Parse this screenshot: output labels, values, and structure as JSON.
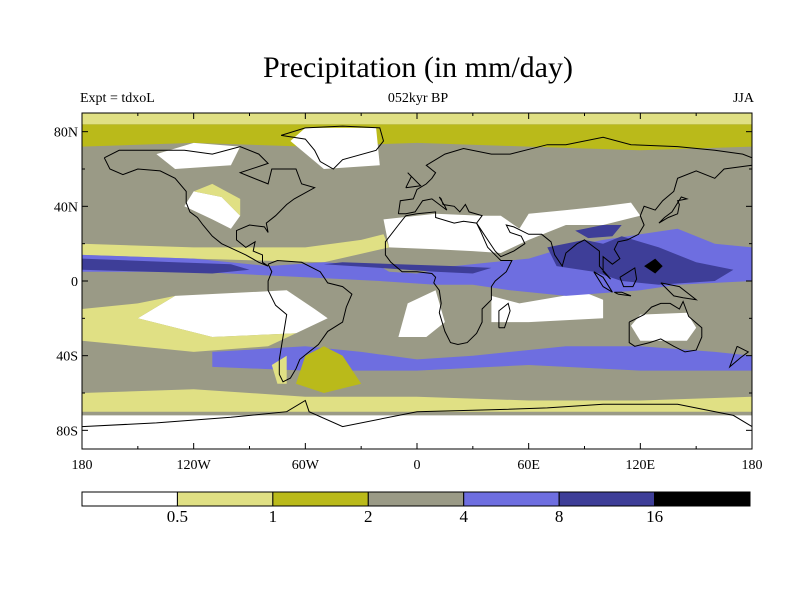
{
  "title": "Precipitation (in mm/day)",
  "subtitle_left": "Expt = tdxoL",
  "subtitle_center": "052kyr BP",
  "subtitle_right": "JJA",
  "lat_ticks": [
    "80N",
    "40N",
    "0",
    "40S",
    "80S"
  ],
  "lon_ticks": [
    "180",
    "120W",
    "60W",
    "0",
    "60E",
    "120E",
    "180"
  ],
  "colorbar": {
    "colors": [
      "#ffffff",
      "#e0e084",
      "#baba1a",
      "#9a9a86",
      "#6e6ee0",
      "#3e3e98",
      "#000000"
    ],
    "labels": [
      "0.5",
      "1",
      "2",
      "4",
      "8",
      "16"
    ]
  },
  "chart_data": {
    "type": "heatmap",
    "title": "Precipitation (in mm/day)",
    "projection": "cylindrical-equidistant",
    "lon_range": [
      -180,
      180
    ],
    "lat_range": [
      -90,
      90
    ],
    "levels": [
      0.5,
      1,
      2,
      4,
      8,
      16
    ],
    "level_colors": [
      "#ffffff",
      "#e0e084",
      "#baba1a",
      "#9a9a86",
      "#6e6ee0",
      "#3e3e98",
      "#000000"
    ],
    "season": "JJA",
    "experiment": "tdxoL",
    "time": "052kyr BP",
    "regions": [
      {
        "class": 3,
        "poly": [
          [
            -180,
            50
          ],
          [
            -150,
            48
          ],
          [
            -120,
            45
          ],
          [
            -90,
            52
          ],
          [
            -60,
            55
          ],
          [
            -30,
            62
          ],
          [
            0,
            60
          ],
          [
            30,
            63
          ],
          [
            60,
            58
          ],
          [
            90,
            55
          ],
          [
            120,
            52
          ],
          [
            150,
            58
          ],
          [
            180,
            55
          ],
          [
            180,
            72
          ],
          [
            120,
            70
          ],
          [
            60,
            72
          ],
          [
            0,
            74
          ],
          [
            -60,
            72
          ],
          [
            -120,
            74
          ],
          [
            -180,
            72
          ]
        ]
      },
      {
        "class": 2,
        "poly": [
          [
            -180,
            72
          ],
          [
            -120,
            74
          ],
          [
            -60,
            72
          ],
          [
            0,
            74
          ],
          [
            60,
            72
          ],
          [
            120,
            70
          ],
          [
            180,
            72
          ],
          [
            180,
            84
          ],
          [
            -180,
            84
          ]
        ]
      },
      {
        "class": 1,
        "poly": [
          [
            -180,
            84
          ],
          [
            180,
            84
          ],
          [
            180,
            90
          ],
          [
            -180,
            90
          ]
        ]
      },
      {
        "class": 0,
        "poly": [
          [
            -50,
            60
          ],
          [
            -20,
            62
          ],
          [
            -22,
            82
          ],
          [
            -60,
            82
          ],
          [
            -68,
            75
          ]
        ]
      },
      {
        "class": 0,
        "poly": [
          [
            -130,
            60
          ],
          [
            -100,
            62
          ],
          [
            -95,
            72
          ],
          [
            -120,
            74
          ],
          [
            -140,
            68
          ]
        ]
      },
      {
        "class": 0,
        "poly": [
          [
            -125,
            40
          ],
          [
            -110,
            33
          ],
          [
            -100,
            28
          ],
          [
            -95,
            35
          ],
          [
            -105,
            45
          ],
          [
            -120,
            48
          ]
        ]
      },
      {
        "class": 1,
        "poly": [
          [
            -120,
            48
          ],
          [
            -105,
            45
          ],
          [
            -95,
            35
          ],
          [
            -95,
            44
          ],
          [
            -110,
            52
          ]
        ]
      },
      {
        "class": 0,
        "poly": [
          [
            -18,
            33
          ],
          [
            10,
            36
          ],
          [
            35,
            35
          ],
          [
            45,
            35
          ],
          [
            55,
            28
          ],
          [
            60,
            36
          ],
          [
            80,
            38
          ],
          [
            100,
            40
          ],
          [
            115,
            42
          ],
          [
            120,
            35
          ],
          [
            100,
            30
          ],
          [
            80,
            30
          ],
          [
            60,
            22
          ],
          [
            45,
            15
          ],
          [
            30,
            16
          ],
          [
            10,
            17
          ],
          [
            -15,
            18
          ]
        ]
      },
      {
        "class": 0,
        "poly": [
          [
            40,
            -10
          ],
          [
            40,
            -8
          ],
          [
            55,
            -12
          ],
          [
            90,
            -6
          ],
          [
            100,
            -10
          ],
          [
            100,
            -20
          ],
          [
            60,
            -22
          ],
          [
            40,
            -22
          ]
        ]
      },
      {
        "class": 0,
        "poly": [
          [
            -5,
            -12
          ],
          [
            10,
            -5
          ],
          [
            15,
            -22
          ],
          [
            5,
            -30
          ],
          [
            -10,
            -30
          ]
        ]
      },
      {
        "class": 0,
        "poly": [
          [
            -130,
            -8
          ],
          [
            -70,
            -5
          ],
          [
            -55,
            -15
          ],
          [
            -48,
            -20
          ],
          [
            -65,
            -28
          ],
          [
            -110,
            -30
          ],
          [
            -150,
            -20
          ]
        ]
      },
      {
        "class": 0,
        "poly": [
          [
            120,
            -18
          ],
          [
            145,
            -17
          ],
          [
            150,
            -25
          ],
          [
            145,
            -32
          ],
          [
            120,
            -32
          ],
          [
            115,
            -24
          ]
        ]
      },
      {
        "class": 1,
        "poly": [
          [
            -180,
            -15
          ],
          [
            -150,
            -12
          ],
          [
            -130,
            -8
          ],
          [
            -150,
            -20
          ],
          [
            -110,
            -30
          ],
          [
            -65,
            -28
          ],
          [
            -80,
            -35
          ],
          [
            -120,
            -38
          ],
          [
            -180,
            -32
          ]
        ]
      },
      {
        "class": 1,
        "poly": [
          [
            -180,
            20
          ],
          [
            -120,
            18
          ],
          [
            -60,
            18
          ],
          [
            -30,
            22
          ],
          [
            -18,
            25
          ],
          [
            -15,
            18
          ],
          [
            -50,
            10
          ],
          [
            -120,
            12
          ],
          [
            -180,
            14
          ]
        ]
      },
      {
        "class": 4,
        "poly": [
          [
            -180,
            14
          ],
          [
            -120,
            12
          ],
          [
            -80,
            8
          ],
          [
            -50,
            10
          ],
          [
            -20,
            8
          ],
          [
            -15,
            5
          ],
          [
            0,
            4
          ],
          [
            20,
            8
          ],
          [
            40,
            10
          ],
          [
            60,
            12
          ],
          [
            80,
            18
          ],
          [
            100,
            22
          ],
          [
            120,
            25
          ],
          [
            140,
            28
          ],
          [
            160,
            20
          ],
          [
            180,
            18
          ],
          [
            180,
            0
          ],
          [
            140,
            -2
          ],
          [
            120,
            -5
          ],
          [
            80,
            -8
          ],
          [
            50,
            -5
          ],
          [
            30,
            -2
          ],
          [
            10,
            -2
          ],
          [
            -20,
            0
          ],
          [
            -60,
            2
          ],
          [
            -120,
            5
          ],
          [
            -180,
            5
          ]
        ]
      },
      {
        "class": 5,
        "poly": [
          [
            -180,
            12
          ],
          [
            -130,
            10
          ],
          [
            -100,
            9
          ],
          [
            -90,
            6
          ],
          [
            -110,
            4
          ],
          [
            -180,
            6
          ]
        ]
      },
      {
        "class": 5,
        "poly": [
          [
            -50,
            9
          ],
          [
            -20,
            7
          ],
          [
            10,
            5
          ],
          [
            30,
            4
          ],
          [
            40,
            7
          ],
          [
            20,
            8
          ],
          [
            -10,
            9
          ],
          [
            -40,
            10
          ]
        ]
      },
      {
        "class": 5,
        "poly": [
          [
            70,
            18
          ],
          [
            90,
            22
          ],
          [
            100,
            20
          ],
          [
            110,
            24
          ],
          [
            130,
            18
          ],
          [
            150,
            10
          ],
          [
            170,
            6
          ],
          [
            160,
            0
          ],
          [
            130,
            -2
          ],
          [
            110,
            0
          ],
          [
            95,
            5
          ],
          [
            75,
            8
          ]
        ]
      },
      {
        "class": 6,
        "poly": [
          [
            122,
            8
          ],
          [
            128,
            12
          ],
          [
            132,
            8
          ],
          [
            128,
            4
          ]
        ]
      },
      {
        "class": 5,
        "poly": [
          [
            85,
            27
          ],
          [
            100,
            30
          ],
          [
            110,
            30
          ],
          [
            105,
            24
          ],
          [
            92,
            23
          ]
        ]
      },
      {
        "class": 4,
        "poly": [
          [
            -110,
            -38
          ],
          [
            -60,
            -35
          ],
          [
            -30,
            -38
          ],
          [
            0,
            -42
          ],
          [
            30,
            -40
          ],
          [
            80,
            -35
          ],
          [
            120,
            -35
          ],
          [
            160,
            -38
          ],
          [
            180,
            -40
          ],
          [
            180,
            -48
          ],
          [
            120,
            -48
          ],
          [
            60,
            -45
          ],
          [
            0,
            -48
          ],
          [
            -60,
            -48
          ],
          [
            -110,
            -46
          ]
        ]
      },
      {
        "class": 1,
        "poly": [
          [
            -180,
            -60
          ],
          [
            -120,
            -58
          ],
          [
            -60,
            -62
          ],
          [
            0,
            -62
          ],
          [
            60,
            -64
          ],
          [
            120,
            -64
          ],
          [
            180,
            -62
          ],
          [
            180,
            -70
          ],
          [
            -180,
            -70
          ]
        ]
      },
      {
        "class": 0,
        "poly": [
          [
            -180,
            -72
          ],
          [
            180,
            -72
          ],
          [
            180,
            -90
          ],
          [
            -180,
            -90
          ]
        ]
      },
      {
        "class": 2,
        "poly": [
          [
            -50,
            -35
          ],
          [
            -40,
            -40
          ],
          [
            -30,
            -55
          ],
          [
            -50,
            -60
          ],
          [
            -65,
            -55
          ],
          [
            -60,
            -40
          ]
        ]
      },
      {
        "class": 1,
        "poly": [
          [
            -78,
            -45
          ],
          [
            -70,
            -40
          ],
          [
            -70,
            -55
          ],
          [
            -75,
            -55
          ]
        ]
      }
    ]
  }
}
